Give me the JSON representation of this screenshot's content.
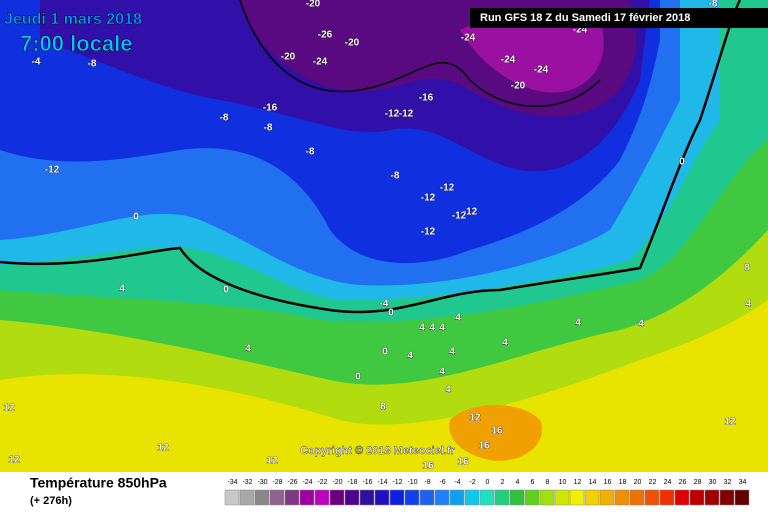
{
  "header": {
    "date": "Jeudi 1 mars 2018",
    "time": "7:00 locale",
    "run": "Run GFS 18 Z du Samedi 17 février 2018"
  },
  "footer": {
    "title": "Température 850hPa",
    "subtitle": "(+ 276h)",
    "copyright": "Copyright © 2018 Meteociel.fr"
  },
  "legend": {
    "values": [
      -34,
      -32,
      -30,
      -28,
      -26,
      -24,
      -22,
      -20,
      -18,
      -16,
      -14,
      -12,
      -10,
      -8,
      -6,
      -4,
      -2,
      0,
      2,
      4,
      6,
      8,
      10,
      12,
      14,
      16,
      18,
      20,
      22,
      24,
      26,
      28,
      30,
      32,
      34
    ],
    "colors": [
      "#c8c8c8",
      "#a8a8a8",
      "#888888",
      "#906090",
      "#803880",
      "#a000a0",
      "#c000c0",
      "#6a0080",
      "#500090",
      "#3010a0",
      "#2010c0",
      "#1020e0",
      "#1040f0",
      "#2060f0",
      "#2080f8",
      "#10a0f0",
      "#10c8e8",
      "#20e0c0",
      "#20d080",
      "#30c040",
      "#60d020",
      "#a0e010",
      "#d0e800",
      "#f0f000",
      "#f0d000",
      "#f0b000",
      "#f09000",
      "#f07000",
      "#f05000",
      "#f03000",
      "#e00000",
      "#c00000",
      "#a00000",
      "#800000",
      "#600000"
    ]
  },
  "map_labels": [
    -20,
    -26,
    -20,
    -20,
    -24,
    -8,
    -4,
    -24,
    -24,
    -24,
    -20,
    -16,
    -16,
    -12,
    -12,
    -8,
    -8,
    -12,
    -8,
    -8,
    -12,
    -12,
    -12,
    -12,
    -12,
    0,
    0,
    4,
    0,
    8,
    4,
    -4,
    0,
    4,
    4,
    4,
    4,
    4,
    4,
    4,
    0,
    4,
    4,
    4,
    0,
    4,
    4,
    8,
    12,
    12,
    16,
    16,
    12,
    12,
    16,
    12,
    16,
    12,
    -8,
    -24
  ]
}
